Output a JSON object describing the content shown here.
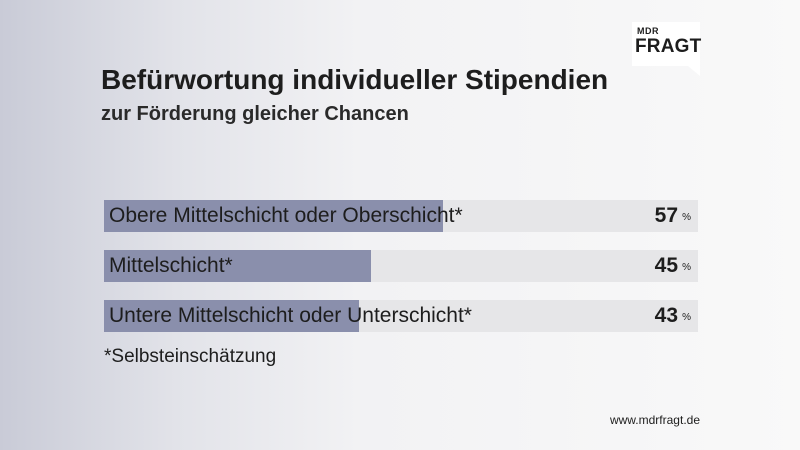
{
  "logo": {
    "line1": "MDR",
    "line2": "FRAGT"
  },
  "chart_data": {
    "type": "bar",
    "orientation": "horizontal",
    "title": "Befürwortung individueller Stipendien",
    "subtitle": "zur Förderung gleicher Chancen",
    "categories": [
      "Obere Mittelschicht oder Oberschicht*",
      "Mittelschicht*",
      "Untere Mittelschicht oder Unterschicht*"
    ],
    "values": [
      57,
      45,
      43
    ],
    "unit": "%",
    "xlim": [
      0,
      100
    ],
    "bar_color": "#8a8fac",
    "track_color": "#e6e6e8"
  },
  "footnote": "*Selbsteinschätzung",
  "source": "www.mdrfragt.de"
}
